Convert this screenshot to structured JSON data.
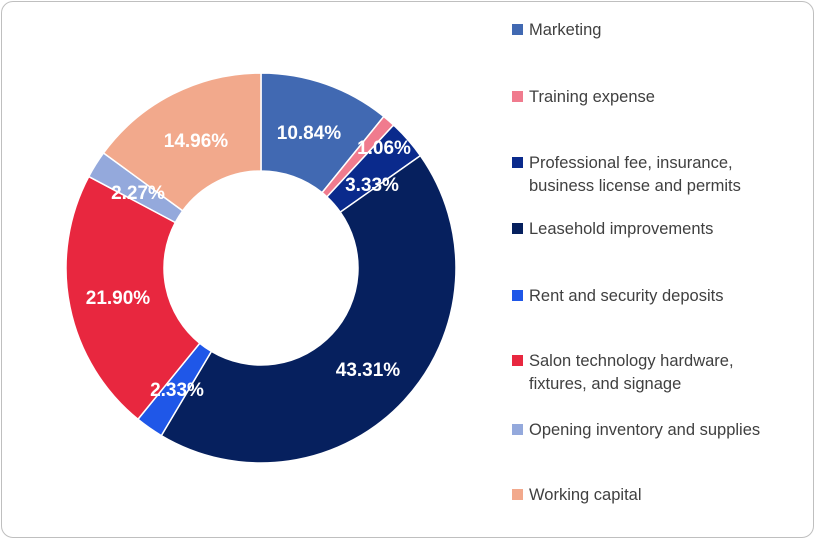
{
  "chart_data": {
    "type": "pie",
    "donut": true,
    "title": "",
    "legend_position": "right",
    "categories": [
      "Marketing",
      "Training expense",
      "Professional fee, insurance,\nbusiness license and permits",
      "Leasehold improvements",
      "Rent and security deposits",
      "Salon technology hardware,\nfixtures, and signage",
      "Opening inventory and supplies",
      "Working capital"
    ],
    "values": [
      10.84,
      1.06,
      3.33,
      43.31,
      2.33,
      21.9,
      2.27,
      14.96
    ],
    "labels": [
      "10.84%",
      "1.06%",
      "3.33%",
      "43.31%",
      "2.33%",
      "21.90%",
      "2.27%",
      "14.96%"
    ],
    "colors": [
      "#4169b2",
      "#f07b8e",
      "#0a2a8c",
      "#06205e",
      "#1f57e8",
      "#e8273f",
      "#94a9dc",
      "#f2a98c"
    ]
  }
}
